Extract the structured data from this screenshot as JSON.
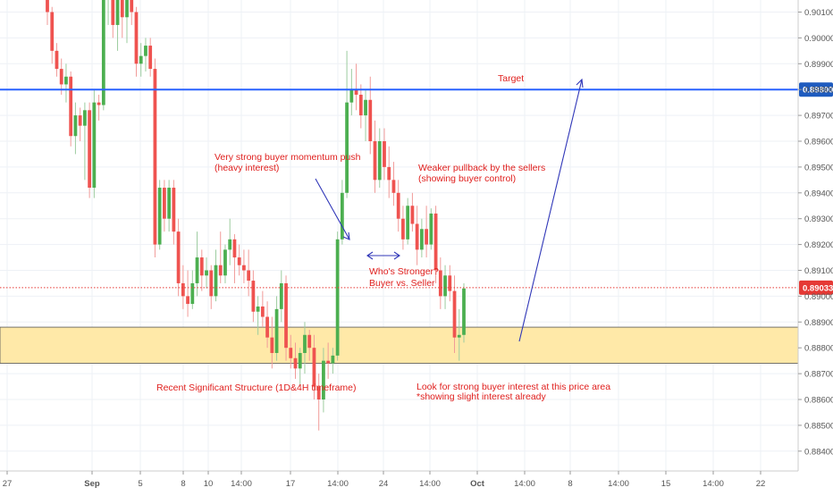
{
  "colors": {
    "background": "#ffffff",
    "grid": "#eef1f6",
    "bull": "#4caf50",
    "bear": "#ef5350",
    "wick_bull": "#9ccc9f",
    "wick_bear": "#f19b99",
    "target_line": "#2962ff",
    "target_badge": "#1e5bbf",
    "price_line": "#e53935",
    "zone_fill": "#ffe9a8",
    "zone_border": "#555555",
    "annotation_text": "#e0201e",
    "arrow": "#3037b8",
    "axis_text": "#555555"
  },
  "chart_data": {
    "type": "candlestick",
    "price_axis": {
      "range": [
        0.8835,
        0.9015
      ],
      "ticks": [
        "0.90100",
        "0.90000",
        "0.89900",
        "0.89800",
        "0.89700",
        "0.89600",
        "0.89500",
        "0.89400",
        "0.89300",
        "0.89200",
        "0.89100",
        "0.89000",
        "0.88900",
        "0.88800",
        "0.88700",
        "0.88600",
        "0.88500",
        "0.88400"
      ]
    },
    "time_axis": {
      "ticks": [
        "27",
        "Sep",
        "5",
        "8",
        "10",
        "14:00",
        "17",
        "14:00",
        "24",
        "14:00",
        "Oct",
        "14:00",
        "8",
        "14:00",
        "15",
        "14:00",
        "22"
      ]
    },
    "candles": [
      [
        0.9025,
        0.9035,
        0.9005,
        0.901
      ],
      [
        0.901,
        0.9012,
        0.899,
        0.8995
      ],
      [
        0.8995,
        0.8998,
        0.8985,
        0.8988
      ],
      [
        0.8988,
        0.8992,
        0.8978,
        0.8982
      ],
      [
        0.8982,
        0.899,
        0.8975,
        0.8985
      ],
      [
        0.8985,
        0.8987,
        0.8958,
        0.8962
      ],
      [
        0.8962,
        0.8975,
        0.8955,
        0.897
      ],
      [
        0.897,
        0.8973,
        0.896,
        0.8966
      ],
      [
        0.8966,
        0.8975,
        0.8945,
        0.8972
      ],
      [
        0.8972,
        0.8975,
        0.8938,
        0.8942
      ],
      [
        0.8942,
        0.898,
        0.8938,
        0.8975
      ],
      [
        0.8975,
        0.8978,
        0.8968,
        0.8974
      ],
      [
        0.8974,
        0.902,
        0.8972,
        0.9015
      ],
      [
        0.9015,
        0.903,
        0.9005,
        0.9025
      ],
      [
        0.9025,
        0.9028,
        0.9,
        0.9005
      ],
      [
        0.9005,
        0.9018,
        0.8995,
        0.9015
      ],
      [
        0.9015,
        0.902,
        0.9,
        0.9008
      ],
      [
        0.9008,
        0.9025,
        0.8998,
        0.9022
      ],
      [
        0.9022,
        0.9025,
        0.9005,
        0.901
      ],
      [
        0.901,
        0.9012,
        0.8985,
        0.899
      ],
      [
        0.899,
        0.8998,
        0.8985,
        0.8993
      ],
      [
        0.8993,
        0.9,
        0.8987,
        0.8997
      ],
      [
        0.8997,
        0.9,
        0.8985,
        0.8988
      ],
      [
        0.8988,
        0.8992,
        0.8915,
        0.892
      ],
      [
        0.892,
        0.8945,
        0.8918,
        0.8942
      ],
      [
        0.8942,
        0.8945,
        0.8925,
        0.893
      ],
      [
        0.893,
        0.8945,
        0.8925,
        0.8942
      ],
      [
        0.8942,
        0.8945,
        0.892,
        0.8925
      ],
      [
        0.8925,
        0.893,
        0.89,
        0.8905
      ],
      [
        0.8905,
        0.8912,
        0.8895,
        0.89
      ],
      [
        0.89,
        0.891,
        0.8892,
        0.8897
      ],
      [
        0.8897,
        0.891,
        0.8895,
        0.8905
      ],
      [
        0.8905,
        0.8925,
        0.89,
        0.8915
      ],
      [
        0.8915,
        0.8918,
        0.8902,
        0.8908
      ],
      [
        0.8908,
        0.8915,
        0.8903,
        0.891
      ],
      [
        0.891,
        0.8912,
        0.8895,
        0.89
      ],
      [
        0.89,
        0.8918,
        0.8898,
        0.8912
      ],
      [
        0.8912,
        0.8925,
        0.8905,
        0.8908
      ],
      [
        0.8908,
        0.892,
        0.8905,
        0.8918
      ],
      [
        0.8918,
        0.893,
        0.8912,
        0.8922
      ],
      [
        0.8922,
        0.8924,
        0.8905,
        0.8915
      ],
      [
        0.8915,
        0.892,
        0.8908,
        0.8912
      ],
      [
        0.8912,
        0.8918,
        0.8905,
        0.891
      ],
      [
        0.891,
        0.8918,
        0.89,
        0.8906
      ],
      [
        0.8906,
        0.891,
        0.889,
        0.8894
      ],
      [
        0.8894,
        0.89,
        0.8885,
        0.8896
      ],
      [
        0.8896,
        0.8902,
        0.8888,
        0.8892
      ],
      [
        0.8892,
        0.8898,
        0.888,
        0.8884
      ],
      [
        0.8884,
        0.8892,
        0.8872,
        0.8878
      ],
      [
        0.8878,
        0.89,
        0.8875,
        0.8895
      ],
      [
        0.8895,
        0.891,
        0.889,
        0.8905
      ],
      [
        0.8905,
        0.8908,
        0.8875,
        0.888
      ],
      [
        0.888,
        0.8885,
        0.8872,
        0.8876
      ],
      [
        0.8876,
        0.8882,
        0.8868,
        0.8872
      ],
      [
        0.8872,
        0.888,
        0.8865,
        0.8878
      ],
      [
        0.8878,
        0.889,
        0.887,
        0.8885
      ],
      [
        0.8885,
        0.8887,
        0.8875,
        0.888
      ],
      [
        0.888,
        0.8885,
        0.886,
        0.8865
      ],
      [
        0.8865,
        0.887,
        0.8848,
        0.886
      ],
      [
        0.886,
        0.888,
        0.8855,
        0.8875
      ],
      [
        0.8875,
        0.8882,
        0.8868,
        0.8874
      ],
      [
        0.8874,
        0.888,
        0.887,
        0.8877
      ],
      [
        0.8877,
        0.8925,
        0.8875,
        0.8922
      ],
      [
        0.8922,
        0.8945,
        0.892,
        0.894
      ],
      [
        0.894,
        0.8995,
        0.8938,
        0.8975
      ],
      [
        0.8975,
        0.8988,
        0.897,
        0.898
      ],
      [
        0.898,
        0.899,
        0.8972,
        0.8978
      ],
      [
        0.8978,
        0.8982,
        0.8965,
        0.897
      ],
      [
        0.897,
        0.898,
        0.896,
        0.8976
      ],
      [
        0.8976,
        0.8985,
        0.8955,
        0.896
      ],
      [
        0.896,
        0.8968,
        0.894,
        0.8945
      ],
      [
        0.8945,
        0.8965,
        0.8942,
        0.896
      ],
      [
        0.896,
        0.8965,
        0.8945,
        0.895
      ],
      [
        0.895,
        0.8958,
        0.8938,
        0.8945
      ],
      [
        0.8945,
        0.8952,
        0.8935,
        0.894
      ],
      [
        0.894,
        0.8945,
        0.8925,
        0.893
      ],
      [
        0.893,
        0.8935,
        0.8918,
        0.8922
      ],
      [
        0.8922,
        0.8938,
        0.892,
        0.8935
      ],
      [
        0.8935,
        0.894,
        0.8925,
        0.8928
      ],
      [
        0.8928,
        0.8935,
        0.8912,
        0.8918
      ],
      [
        0.8918,
        0.893,
        0.8915,
        0.8926
      ],
      [
        0.8926,
        0.8935,
        0.8915,
        0.892
      ],
      [
        0.892,
        0.8934,
        0.8918,
        0.8932
      ],
      [
        0.8932,
        0.8935,
        0.8905,
        0.891
      ],
      [
        0.891,
        0.8915,
        0.8895,
        0.89
      ],
      [
        0.89,
        0.8912,
        0.8895,
        0.8908
      ],
      [
        0.8908,
        0.8912,
        0.8898,
        0.8902
      ],
      [
        0.8902,
        0.8908,
        0.8878,
        0.8884
      ],
      [
        0.8884,
        0.8895,
        0.8875,
        0.8885
      ],
      [
        0.8885,
        0.8905,
        0.8882,
        0.8903
      ]
    ],
    "horizontal_lines": [
      {
        "kind": "target",
        "price": 0.898,
        "label": "0.89800"
      },
      {
        "kind": "current",
        "price": 0.89033,
        "label": "0.89033"
      }
    ],
    "zone": {
      "from": 0.8874,
      "to": 0.8888
    },
    "annotations": [
      {
        "id": "target",
        "text": "Target"
      },
      {
        "id": "momentum-1",
        "text": "Very strong buyer momentum push"
      },
      {
        "id": "momentum-2",
        "text": "(heavy interest)"
      },
      {
        "id": "pullback-1",
        "text": "Weaker pullback by the sellers"
      },
      {
        "id": "pullback-2",
        "text": "(showing buyer control)"
      },
      {
        "id": "stronger-1",
        "text": "Who's Stronger?"
      },
      {
        "id": "stronger-2",
        "text": "Buyer vs. Seller"
      },
      {
        "id": "structure",
        "text": "Recent Significant Structure (1D&4H timeframe)"
      },
      {
        "id": "look-1",
        "text": "Look for strong buyer interest at this price area"
      },
      {
        "id": "look-2",
        "text": "*showing slight interest already"
      }
    ]
  }
}
